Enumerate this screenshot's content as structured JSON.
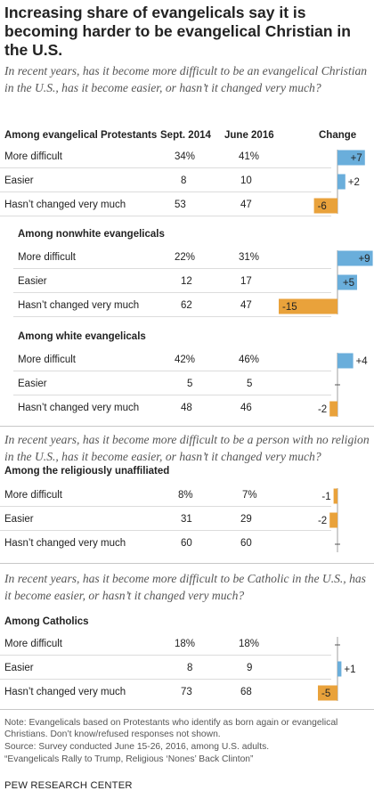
{
  "title": "Increasing share of evangelicals say it is becoming harder to be evangelical Christian in the U.S.",
  "colors": {
    "increase": "#6aaedb",
    "decrease": "#e9a23b",
    "zero_line": "#888888"
  },
  "sections": [
    {
      "question": "In recent years, has it become more difficult to be an evangelical Christian in the U.S., has it become easier, or hasn’t it changed very much?",
      "columns": {
        "col1": "Sept. 2014",
        "col2": "June 2016",
        "change": "Change"
      },
      "groups": [
        {
          "name": "Among evangelical Protestants",
          "rows": [
            {
              "label": "More difficult",
              "v1": "34%",
              "v2": "41%",
              "change": 7,
              "change_text": "+7"
            },
            {
              "label": "Easier",
              "v1": "8",
              "v2": "10",
              "change": 2,
              "change_text": "+2"
            },
            {
              "label": "Hasn’t changed very much",
              "v1": "53",
              "v2": "47",
              "change": -6,
              "change_text": "-6"
            }
          ]
        },
        {
          "name": "Among nonwhite evangelicals",
          "rows": [
            {
              "label": "More difficult",
              "v1": "22%",
              "v2": "31%",
              "change": 9,
              "change_text": "+9"
            },
            {
              "label": "Easier",
              "v1": "12",
              "v2": "17",
              "change": 5,
              "change_text": "+5"
            },
            {
              "label": "Hasn’t changed very much",
              "v1": "62",
              "v2": "47",
              "change": -15,
              "change_text": "-15"
            }
          ]
        },
        {
          "name": "Among white evangelicals",
          "rows": [
            {
              "label": "More difficult",
              "v1": "42%",
              "v2": "46%",
              "change": 4,
              "change_text": "+4"
            },
            {
              "label": "Easier",
              "v1": "5",
              "v2": "5",
              "change": 0,
              "change_text": ""
            },
            {
              "label": "Hasn’t changed very much",
              "v1": "48",
              "v2": "46",
              "change": -2,
              "change_text": "-2"
            }
          ]
        }
      ]
    },
    {
      "question": "In recent years, has it become more difficult to be a person with no religion in the U.S., has it become easier, or hasn’t it changed very much?",
      "groups": [
        {
          "name": "Among the religiously unaffiliated",
          "rows": [
            {
              "label": "More difficult",
              "v1": "8%",
              "v2": "7%",
              "change": -1,
              "change_text": "-1"
            },
            {
              "label": "Easier",
              "v1": "31",
              "v2": "29",
              "change": -2,
              "change_text": "-2"
            },
            {
              "label": "Hasn’t changed very much",
              "v1": "60",
              "v2": "60",
              "change": 0,
              "change_text": ""
            }
          ]
        }
      ]
    },
    {
      "question": "In recent years, has it become more difficult to be Catholic in the U.S., has it become easier, or hasn’t it changed very much?",
      "groups": [
        {
          "name": "Among Catholics",
          "rows": [
            {
              "label": "More difficult",
              "v1": "18%",
              "v2": "18%",
              "change": 0,
              "change_text": ""
            },
            {
              "label": "Easier",
              "v1": "8",
              "v2": "9",
              "change": 1,
              "change_text": "+1"
            },
            {
              "label": "Hasn’t changed very much",
              "v1": "73",
              "v2": "68",
              "change": -5,
              "change_text": "-5"
            }
          ]
        }
      ]
    }
  ],
  "notes": [
    "Note: Evangelicals based on Protestants who identify as born again or evangelical Christians. Don’t know/refused responses not shown.",
    "Source: Survey conducted June 15-26, 2016, among U.S. adults.",
    "“Evangelicals Rally to Trump, Religious ‘Nones’ Back Clinton”"
  ],
  "source_label": "PEW RESEARCH CENTER",
  "chart_data": {
    "type": "table",
    "title": "Increasing share of evangelicals say it is becoming harder to be evangelical Christian in the U.S.",
    "columns": [
      "Sept. 2014",
      "June 2016",
      "Change"
    ],
    "groups": [
      {
        "name": "Among evangelical Protestants",
        "categories": [
          "More difficult",
          "Easier",
          "Hasn’t changed very much"
        ],
        "sept_2014": [
          34,
          8,
          53
        ],
        "june_2016": [
          41,
          10,
          47
        ],
        "change": [
          7,
          2,
          -6
        ]
      },
      {
        "name": "Among nonwhite evangelicals",
        "categories": [
          "More difficult",
          "Easier",
          "Hasn’t changed very much"
        ],
        "sept_2014": [
          22,
          12,
          62
        ],
        "june_2016": [
          31,
          17,
          47
        ],
        "change": [
          9,
          5,
          -15
        ]
      },
      {
        "name": "Among white evangelicals",
        "categories": [
          "More difficult",
          "Easier",
          "Hasn’t changed very much"
        ],
        "sept_2014": [
          42,
          5,
          48
        ],
        "june_2016": [
          46,
          5,
          46
        ],
        "change": [
          4,
          0,
          -2
        ]
      },
      {
        "name": "Among the religiously unaffiliated",
        "categories": [
          "More difficult",
          "Easier",
          "Hasn’t changed very much"
        ],
        "sept_2014": [
          8,
          31,
          60
        ],
        "june_2016": [
          7,
          29,
          60
        ],
        "change": [
          -1,
          -2,
          0
        ]
      },
      {
        "name": "Among Catholics",
        "categories": [
          "More difficult",
          "Easier",
          "Hasn’t changed very much"
        ],
        "sept_2014": [
          18,
          8,
          73
        ],
        "june_2016": [
          18,
          9,
          68
        ],
        "change": [
          0,
          1,
          -5
        ]
      }
    ]
  }
}
